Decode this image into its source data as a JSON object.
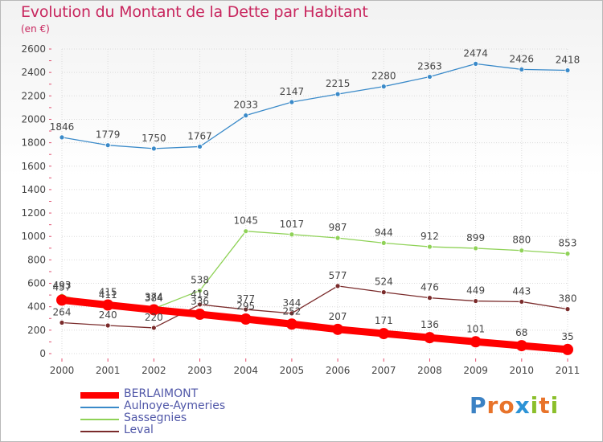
{
  "title": "Evolution du Montant de la Dette par Habitant",
  "subtitle": "(en €)",
  "logo": {
    "text": "Proxiti",
    "letters": [
      {
        "ch": "P",
        "color": "#3b82c4"
      },
      {
        "ch": "r",
        "color": "#e8732a"
      },
      {
        "ch": "o",
        "color": "#e8732a"
      },
      {
        "ch": "x",
        "color": "#2c93d6"
      },
      {
        "ch": "i",
        "color": "#8bbf2a"
      },
      {
        "ch": "t",
        "color": "#e8732a"
      },
      {
        "ch": "i",
        "color": "#8bbf2a"
      }
    ]
  },
  "chart_data": {
    "type": "line",
    "x": [
      "2000",
      "2001",
      "2002",
      "2003",
      "2004",
      "2005",
      "2006",
      "2007",
      "2008",
      "2009",
      "2010",
      "2011"
    ],
    "ylim": [
      0,
      2600
    ],
    "yticks": [
      0,
      200,
      400,
      600,
      800,
      1000,
      1200,
      1400,
      1600,
      1800,
      2000,
      2200,
      2400,
      2600
    ],
    "grid": true,
    "legend_position": "bottom-left",
    "series": [
      {
        "name": "BERLAIMONT",
        "color": "#ff0000",
        "values": [
          457,
          415,
          374,
          336,
          295,
          252,
          207,
          171,
          136,
          101,
          68,
          35
        ]
      },
      {
        "name": "Aulnoye-Aymeries",
        "color": "#3a8ac9",
        "values": [
          1846,
          1779,
          1750,
          1767,
          2033,
          2147,
          2215,
          2280,
          2363,
          2474,
          2426,
          2418
        ]
      },
      {
        "name": "Sassegnies",
        "color": "#8fd257",
        "values": [
          493,
          411,
          384,
          538,
          1045,
          1017,
          987,
          944,
          912,
          899,
          880,
          853
        ]
      },
      {
        "name": "Leval",
        "color": "#7a2b2b",
        "values": [
          264,
          240,
          220,
          419,
          377,
          344,
          577,
          524,
          476,
          449,
          443,
          380
        ]
      }
    ]
  }
}
